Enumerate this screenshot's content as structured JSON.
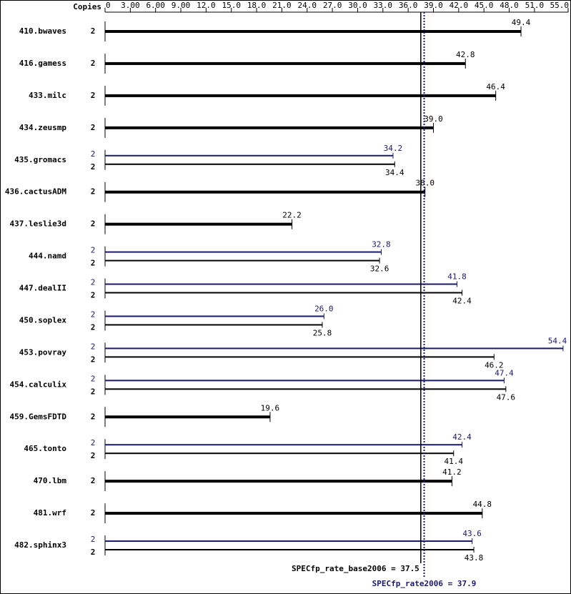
{
  "chart_data": {
    "type": "bar",
    "orientation": "horizontal",
    "copies_header": "Copies",
    "categories": [
      "410.bwaves",
      "416.gamess",
      "433.milc",
      "434.zeusmp",
      "435.gromacs",
      "436.cactusADM",
      "437.leslie3d",
      "444.namd",
      "447.dealII",
      "450.soplex",
      "453.povray",
      "454.calculix",
      "459.GemsFDTD",
      "465.tonto",
      "470.lbm",
      "481.wrf",
      "482.sphinx3"
    ],
    "series": [
      {
        "color": "#000000",
        "copies": [
          2,
          2,
          2,
          2,
          2,
          2,
          2,
          2,
          2,
          2,
          2,
          2,
          2,
          2,
          2,
          2,
          2
        ],
        "values": [
          49.4,
          42.8,
          46.4,
          39.0,
          34.4,
          38.0,
          22.2,
          32.6,
          42.4,
          25.8,
          46.2,
          47.6,
          19.6,
          41.4,
          41.2,
          44.8,
          43.8
        ],
        "value_labels": [
          "49.4",
          "42.8",
          "46.4",
          "39.0",
          "34.4",
          "38.0",
          "22.2",
          "32.6",
          "42.4",
          "25.8",
          "46.2",
          "47.6",
          "19.6",
          "41.4",
          "41.2",
          "44.8",
          "43.8"
        ]
      },
      {
        "color": "#191970",
        "copies": [
          null,
          null,
          null,
          null,
          2,
          null,
          null,
          2,
          2,
          2,
          2,
          2,
          null,
          2,
          null,
          null,
          2
        ],
        "values": [
          null,
          null,
          null,
          null,
          34.2,
          null,
          null,
          32.8,
          41.8,
          26.0,
          54.4,
          47.4,
          null,
          42.4,
          null,
          null,
          43.6
        ],
        "value_labels": [
          null,
          null,
          null,
          null,
          "34.2",
          null,
          null,
          "32.8",
          "41.8",
          "26.0",
          "54.4",
          "47.4",
          null,
          "42.4",
          null,
          null,
          "43.6"
        ]
      }
    ],
    "xlim": [
      0,
      55
    ],
    "xticks": [
      0,
      {
        "value": 3,
        "label": "3.00"
      },
      {
        "value": 6,
        "label": "6.00"
      },
      {
        "value": 9,
        "label": "9.00"
      },
      {
        "value": 12,
        "label": "12.0"
      },
      {
        "value": 15,
        "label": "15.0"
      },
      {
        "value": 18,
        "label": "18.0"
      },
      {
        "value": 21,
        "label": "21.0"
      },
      {
        "value": 24,
        "label": "24.0"
      },
      {
        "value": 27,
        "label": "27.0"
      },
      {
        "value": 30,
        "label": "30.0"
      },
      {
        "value": 33,
        "label": "33.0"
      },
      {
        "value": 36,
        "label": "36.0"
      },
      {
        "value": 39,
        "label": "39.0"
      },
      {
        "value": 42,
        "label": "42.0"
      },
      {
        "value": 45,
        "label": "45.0"
      },
      {
        "value": 48,
        "label": "48.0"
      },
      {
        "value": 51,
        "label": "51.0"
      },
      {
        "value": 55,
        "label": "55.0"
      }
    ],
    "reference_lines": [
      {
        "value": 37.5,
        "label": "SPECfp_rate_base2006 = 37.5",
        "color": "#000000",
        "style": "solid"
      },
      {
        "value": 37.9,
        "label": "SPECfp_rate2006 = 37.9",
        "color": "#191970",
        "style": "dotted"
      }
    ]
  }
}
